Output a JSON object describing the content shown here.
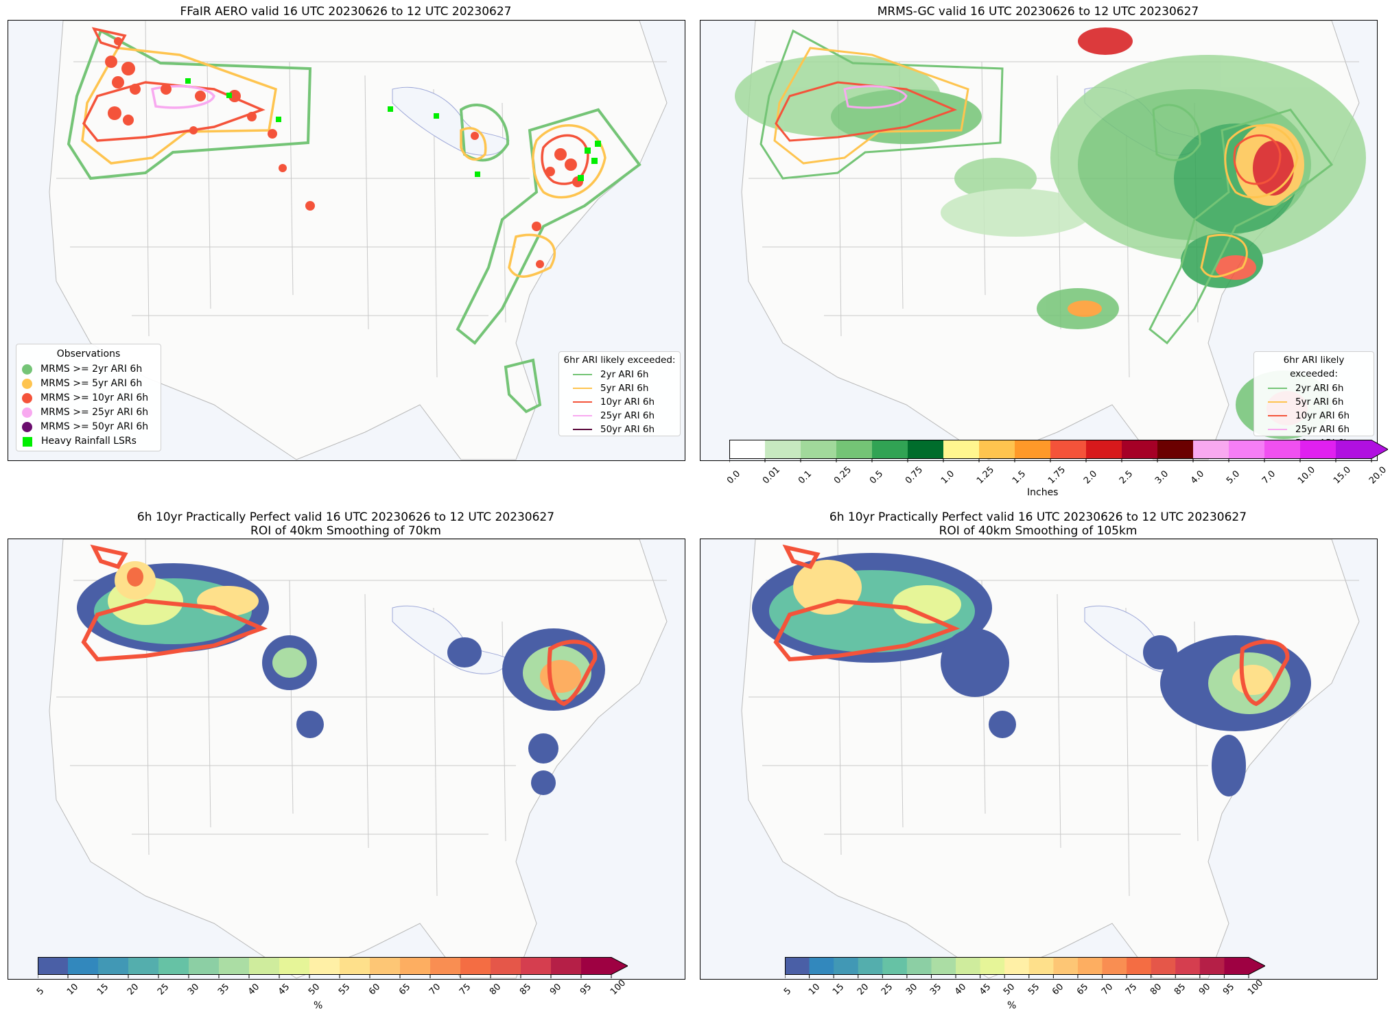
{
  "panels": [
    {
      "title": "FFaIR AERO valid 16 UTC 20230626 to 12 UTC 20230627"
    },
    {
      "title": "MRMS-GC valid 16 UTC 20230626 to 12 UTC 20230627"
    },
    {
      "title": "6h 10yr Practically Perfect valid 16 UTC 20230626 to 12 UTC 20230627\nROI of 40km Smoothing of 70km"
    },
    {
      "title": "6h 10yr Practically Perfect valid 16 UTC 20230626 to 12 UTC 20230627\nROI of 40km Smoothing of 105km"
    }
  ],
  "observations_legend": {
    "title": "Observations",
    "items": [
      {
        "label": "MRMS >= 2yr ARI 6h",
        "color": "#74c476",
        "marker": "circle"
      },
      {
        "label": "MRMS >= 5yr ARI 6h",
        "color": "#fec44f",
        "marker": "circle"
      },
      {
        "label": "MRMS >= 10yr ARI 6h",
        "color": "#f4533a",
        "marker": "circle"
      },
      {
        "label": "MRMS >= 25yr ARI 6h",
        "color": "#f8a9f0",
        "marker": "circle"
      },
      {
        "label": "MRMS >= 50yr ARI 6h",
        "color": "#6a0d6e",
        "marker": "circle"
      },
      {
        "label": "Heavy Rainfall LSRs",
        "color": "#00ee00",
        "marker": "square"
      }
    ]
  },
  "ari_legend": {
    "title": "6hr ARI likely exceeded:",
    "items": [
      {
        "label": "2yr ARI 6h",
        "color": "#74c476"
      },
      {
        "label": "5yr ARI 6h",
        "color": "#fec44f"
      },
      {
        "label": "10yr ARI 6h",
        "color": "#f4533a"
      },
      {
        "label": "25yr ARI 6h",
        "color": "#f8a9f0"
      },
      {
        "label": "50yr ARI 6h",
        "color": "#5a0a3c"
      }
    ]
  },
  "precip_colorbar": {
    "unit": "Inches",
    "ticks": [
      "0.0",
      "0.01",
      "0.1",
      "0.25",
      "0.5",
      "0.75",
      "1.0",
      "1.25",
      "1.5",
      "1.75",
      "2.0",
      "2.5",
      "3.0",
      "4.0",
      "5.0",
      "7.0",
      "10.0",
      "15.0",
      "20.0"
    ],
    "colors": [
      "#ffffff",
      "#c7e9c0",
      "#a1d99b",
      "#74c476",
      "#31a354",
      "#006d2c",
      "#fff68f",
      "#fec44f",
      "#fe9929",
      "#f4533a",
      "#d7191c",
      "#a50026",
      "#6b0000",
      "#f8a9f0",
      "#f57ef5",
      "#f050f0",
      "#e020f0",
      "#b010e0"
    ]
  },
  "prob_colorbar": {
    "unit": "%",
    "ticks": [
      "5",
      "10",
      "15",
      "20",
      "25",
      "30",
      "35",
      "40",
      "45",
      "50",
      "55",
      "60",
      "65",
      "70",
      "75",
      "80",
      "85",
      "90",
      "95",
      "100"
    ],
    "colors": [
      "#4a5fa6",
      "#3288bd",
      "#4198b5",
      "#54aead",
      "#66c2a5",
      "#8ccfa4",
      "#abdda4",
      "#cfec9d",
      "#e6f598",
      "#fff0a6",
      "#fee08b",
      "#fdc675",
      "#fdae61",
      "#f98e52",
      "#f46d43",
      "#e55749",
      "#d53e4f",
      "#b51f47",
      "#9e0142"
    ]
  }
}
